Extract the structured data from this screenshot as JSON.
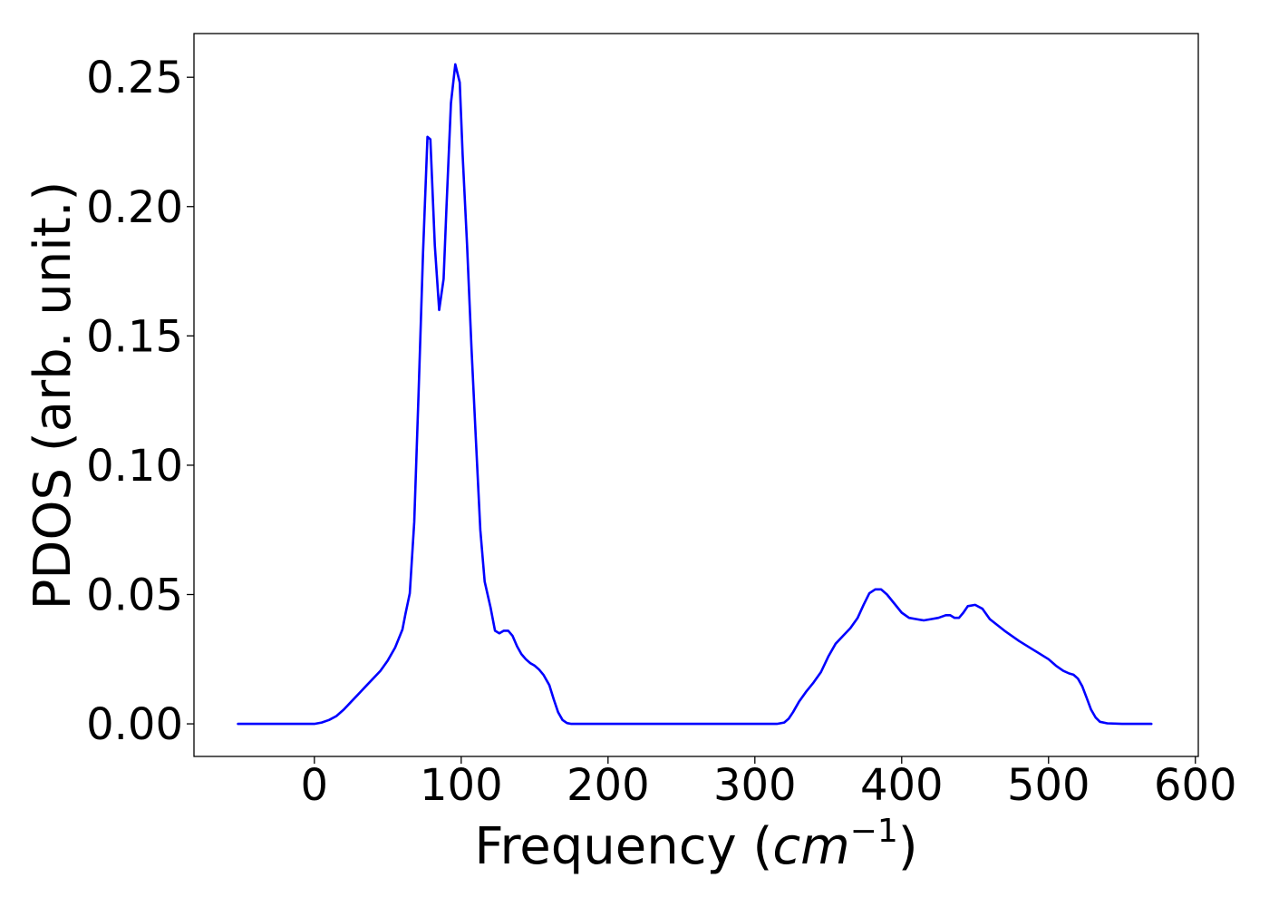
{
  "chart_data": {
    "type": "line",
    "xlabel_main": "Frequency (",
    "xlabel_var": "cm",
    "xlabel_sup": "−1",
    "xlabel_close": ")",
    "ylabel": "PDOS (arb. unit.)",
    "xlim": [
      -82,
      602
    ],
    "ylim": [
      -0.0126,
      0.2669
    ],
    "xticks": [
      0,
      100,
      200,
      300,
      400,
      500,
      600
    ],
    "xtick_labels": [
      "0",
      "100",
      "200",
      "300",
      "400",
      "500",
      "600"
    ],
    "yticks": [
      0.0,
      0.05,
      0.1,
      0.15,
      0.2,
      0.25
    ],
    "ytick_labels": [
      "0.00",
      "0.05",
      "0.10",
      "0.15",
      "0.20",
      "0.25"
    ],
    "grid": false,
    "series": [
      {
        "color": "#0000ff",
        "x": [
          -52,
          -40,
          -30,
          -20,
          -10,
          0,
          5,
          10,
          15,
          20,
          25,
          30,
          35,
          40,
          45,
          50,
          55,
          60,
          62,
          65,
          68,
          71,
          74,
          77,
          79,
          82,
          85,
          88,
          90,
          93,
          96,
          99,
          101,
          104,
          107,
          110,
          113,
          116,
          120,
          123,
          126,
          129,
          132,
          135,
          138,
          141,
          144,
          147,
          150,
          153,
          156,
          160,
          163,
          166,
          169,
          172,
          175,
          178,
          180,
          185,
          190,
          200,
          250,
          300,
          315,
          320,
          323,
          326,
          330,
          335,
          340,
          345,
          350,
          355,
          360,
          365,
          370,
          374,
          378,
          382,
          386,
          390,
          395,
          400,
          405,
          410,
          415,
          420,
          425,
          430,
          433,
          436,
          439,
          442,
          445,
          450,
          455,
          460,
          470,
          480,
          490,
          500,
          505,
          510,
          514,
          517,
          520,
          523,
          526,
          529,
          532,
          535,
          540,
          550,
          560,
          570
        ],
        "y": [
          0.0,
          0.0,
          0.0,
          0.0,
          0.0,
          0.0,
          0.0005,
          0.0015,
          0.003,
          0.0055,
          0.0085,
          0.0115,
          0.0145,
          0.0175,
          0.0205,
          0.0245,
          0.0295,
          0.0365,
          0.0425,
          0.0505,
          0.078,
          0.128,
          0.182,
          0.227,
          0.226,
          0.185,
          0.16,
          0.172,
          0.2,
          0.24,
          0.255,
          0.248,
          0.22,
          0.185,
          0.145,
          0.11,
          0.075,
          0.055,
          0.045,
          0.036,
          0.035,
          0.036,
          0.036,
          0.034,
          0.03,
          0.027,
          0.025,
          0.0235,
          0.0225,
          0.021,
          0.019,
          0.015,
          0.0095,
          0.0045,
          0.0015,
          0.0003,
          0.0,
          0.0,
          0.0,
          0.0,
          0.0,
          0.0,
          0.0,
          0.0,
          0.0,
          0.0005,
          0.002,
          0.0045,
          0.0085,
          0.0125,
          0.016,
          0.02,
          0.026,
          0.031,
          0.034,
          0.037,
          0.041,
          0.046,
          0.0505,
          0.052,
          0.052,
          0.05,
          0.0465,
          0.043,
          0.041,
          0.0405,
          0.04,
          0.0405,
          0.041,
          0.042,
          0.042,
          0.041,
          0.041,
          0.043,
          0.0455,
          0.046,
          0.0445,
          0.0405,
          0.036,
          0.032,
          0.0285,
          0.025,
          0.0225,
          0.0205,
          0.0195,
          0.019,
          0.0175,
          0.0145,
          0.01,
          0.0055,
          0.0025,
          0.0008,
          0.0002,
          0.0,
          0.0,
          0.0
        ]
      }
    ]
  }
}
